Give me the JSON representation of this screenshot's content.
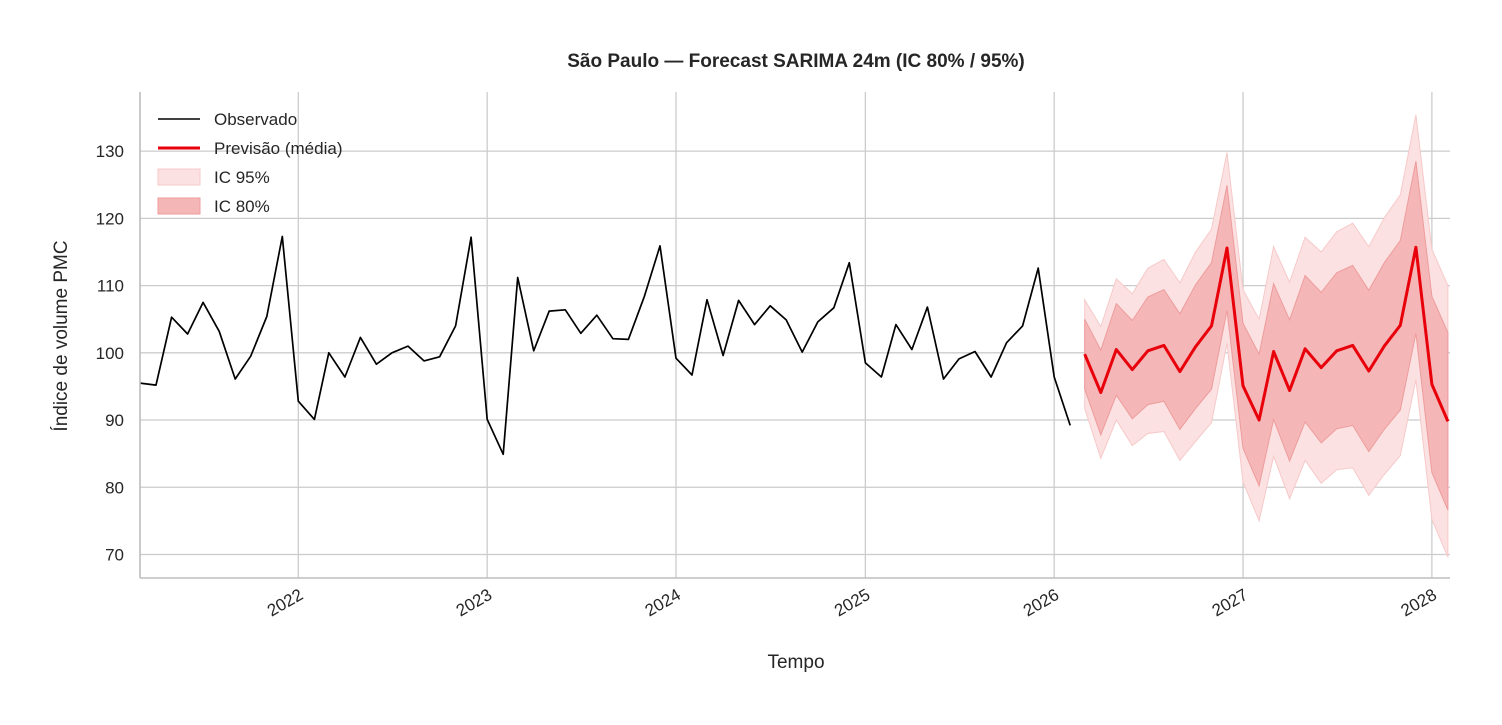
{
  "chart_data": {
    "type": "line",
    "title": "São Paulo — Forecast SARIMA 24m (IC 80% / 95%)",
    "xlabel": "Tempo",
    "ylabel": "Índice de volume PMC",
    "ylim": [
      66.5,
      138.8
    ],
    "xlim": [
      "2021-03-01",
      "2028-02-05"
    ],
    "grid": true,
    "legend_position": "top-left",
    "x_ticks": [
      "2022",
      "2023",
      "2024",
      "2025",
      "2026",
      "2027",
      "2028"
    ],
    "y_ticks": [
      "70",
      "80",
      "90",
      "100",
      "110",
      "120",
      "130"
    ],
    "legend": {
      "observed": "Observado",
      "forecast": "Previsão (média)",
      "ci95": "IC 95%",
      "ci80": "IC 80%"
    },
    "colors": {
      "observed": "#000000",
      "forecast": "#e8000b",
      "ci95": "#fbe1e1",
      "ci80": "#f4b6b6",
      "ci80_edge": "#ee9c9c",
      "ci95_edge": "#f7c9c9",
      "grid": "#cccccc",
      "axis": "#bdbdbd"
    },
    "series": [
      {
        "name": "Observado",
        "dates": [
          "2021-03",
          "2021-04",
          "2021-05",
          "2021-06",
          "2021-07",
          "2021-08",
          "2021-09",
          "2021-10",
          "2021-11",
          "2021-12",
          "2022-01",
          "2022-02",
          "2022-03",
          "2022-04",
          "2022-05",
          "2022-06",
          "2022-07",
          "2022-08",
          "2022-09",
          "2022-10",
          "2022-11",
          "2022-12",
          "2023-01",
          "2023-02",
          "2023-03",
          "2023-04",
          "2023-05",
          "2023-06",
          "2023-07",
          "2023-08",
          "2023-09",
          "2023-10",
          "2023-11",
          "2023-12",
          "2024-01",
          "2024-02",
          "2024-03",
          "2024-04",
          "2024-05",
          "2024-06",
          "2024-07",
          "2024-08",
          "2024-09",
          "2024-10",
          "2024-11",
          "2024-12",
          "2025-01",
          "2025-02",
          "2025-03",
          "2025-04",
          "2025-05",
          "2025-06",
          "2025-07",
          "2025-08",
          "2025-09",
          "2025-10",
          "2025-11",
          "2025-12",
          "2026-01",
          "2026-02"
        ],
        "values": [
          95.5,
          95.2,
          105.3,
          102.8,
          107.5,
          103.2,
          96.1,
          99.5,
          105.4,
          117.3,
          92.8,
          90.1,
          100.0,
          96.4,
          102.3,
          98.3,
          100.0,
          101.0,
          98.8,
          99.4,
          104.0,
          117.2,
          90.1,
          84.9,
          111.2,
          100.3,
          106.2,
          106.4,
          102.9,
          105.6,
          102.1,
          102.0,
          108.4,
          115.9,
          99.2,
          96.7,
          107.9,
          99.6,
          107.8,
          104.2,
          107.0,
          104.9,
          100.1,
          104.6,
          106.7,
          113.4,
          98.5,
          96.4,
          104.2,
          100.5,
          106.8,
          96.1,
          99.1,
          100.2,
          96.4,
          101.5,
          104.0,
          112.6,
          96.4,
          89.2
        ]
      },
      {
        "name": "Previsão (média)",
        "dates": [
          "2026-03",
          "2026-04",
          "2026-05",
          "2026-06",
          "2026-07",
          "2026-08",
          "2026-09",
          "2026-10",
          "2026-11",
          "2026-12",
          "2027-01",
          "2027-02",
          "2027-03",
          "2027-04",
          "2027-05",
          "2027-06",
          "2027-07",
          "2027-08",
          "2027-09",
          "2027-10",
          "2027-11",
          "2027-12",
          "2028-01",
          "2028-02"
        ],
        "values": [
          99.8,
          94.1,
          100.5,
          97.5,
          100.3,
          101.1,
          97.2,
          100.9,
          104.0,
          115.6,
          95.1,
          90.0,
          100.2,
          94.4,
          100.6,
          97.8,
          100.3,
          101.1,
          97.3,
          101.0,
          104.1,
          115.7,
          95.3,
          89.8
        ],
        "ci80_low": [
          94.6,
          87.8,
          93.7,
          90.2,
          92.3,
          92.8,
          88.6,
          91.7,
          94.6,
          106.3,
          85.8,
          80.2,
          90.1,
          83.9,
          89.7,
          86.6,
          88.7,
          89.2,
          85.3,
          88.6,
          91.5,
          102.9,
          82.2,
          76.6
        ],
        "ci80_high": [
          105.0,
          100.4,
          107.3,
          104.8,
          108.3,
          109.4,
          105.8,
          110.1,
          113.4,
          124.9,
          104.4,
          99.8,
          110.3,
          104.9,
          111.5,
          109.0,
          111.9,
          113.0,
          109.3,
          113.4,
          116.7,
          128.5,
          108.4,
          103.0
        ],
        "ci95_low": [
          91.7,
          84.3,
          90.0,
          86.2,
          88.0,
          88.3,
          84.0,
          86.8,
          89.6,
          101.4,
          80.8,
          75.0,
          84.6,
          78.3,
          84.0,
          80.6,
          82.6,
          82.9,
          78.8,
          81.9,
          84.7,
          96.0,
          75.2,
          69.6
        ],
        "ci95_high": [
          107.9,
          103.9,
          111.0,
          108.8,
          112.6,
          113.9,
          110.4,
          115.0,
          118.4,
          129.8,
          109.4,
          105.0,
          115.8,
          110.5,
          117.2,
          115.0,
          118.0,
          119.3,
          115.8,
          120.1,
          123.5,
          135.4,
          115.4,
          110.0
        ]
      }
    ]
  }
}
